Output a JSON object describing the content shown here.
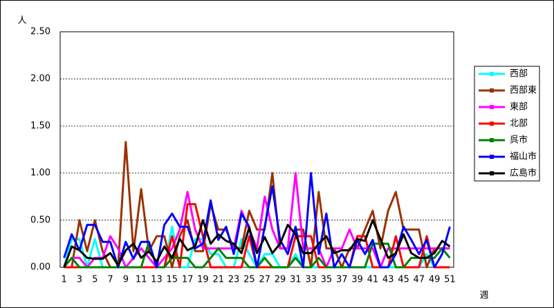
{
  "chart_data": {
    "type": "line",
    "y_label": "人",
    "x_label": "週",
    "categories": [
      1,
      null,
      3,
      null,
      5,
      null,
      7,
      null,
      9,
      null,
      11,
      null,
      13,
      null,
      15,
      null,
      17,
      null,
      19,
      null,
      21,
      null,
      23,
      null,
      25,
      null,
      27,
      null,
      29,
      null,
      31,
      null,
      33,
      null,
      35,
      null,
      37,
      null,
      39,
      null,
      41,
      null,
      43,
      null,
      45,
      null,
      47,
      null,
      49,
      null,
      51
    ],
    "ylim": [
      0,
      2.5
    ],
    "yticks": [
      {
        "value": 0,
        "label": "0.00"
      },
      {
        "value": 0.5,
        "label": "0.50"
      },
      {
        "value": 1,
        "label": "1.00"
      },
      {
        "value": 1.5,
        "label": "1.50"
      },
      {
        "value": 2,
        "label": "2.00"
      },
      {
        "value": 2.5,
        "label": "2.50"
      }
    ],
    "grid": true,
    "series": [
      {
        "name": "西部",
        "color": "#00ffff",
        "values": [
          0,
          0.3,
          0.3,
          0,
          0.3,
          0,
          0,
          0,
          0,
          0,
          0,
          0,
          0,
          0,
          0.43,
          0,
          0,
          0.3,
          0.3,
          0.14,
          0.14,
          0,
          0,
          0.3,
          0.14,
          0,
          0.14,
          0.14,
          0,
          0,
          0.14,
          0,
          0,
          0,
          0,
          0,
          0,
          0,
          0,
          0,
          0,
          0,
          0,
          0,
          0,
          0,
          0,
          0.14,
          0,
          0,
          0
        ]
      },
      {
        "name": "西部東",
        "color": "#993300",
        "values": [
          0,
          0,
          0.5,
          0.17,
          0.5,
          0.17,
          0,
          0,
          1.33,
          0.17,
          0.83,
          0.17,
          0.33,
          0.33,
          0,
          0.33,
          0.5,
          0.17,
          0.17,
          0.67,
          0.4,
          0.4,
          0.2,
          0.2,
          0.6,
          0.4,
          0.4,
          1.0,
          0.2,
          0.2,
          0.4,
          0.4,
          0,
          0.8,
          0.2,
          0.2,
          0,
          0.2,
          0.2,
          0.4,
          0.6,
          0.2,
          0.6,
          0.8,
          0.4,
          0.4,
          0.4,
          0,
          0.2,
          0.2,
          0.2
        ]
      },
      {
        "name": "東部",
        "color": "#ff00ff",
        "values": [
          0,
          0.1,
          0.1,
          0,
          0.1,
          0.1,
          0.33,
          0.2,
          0,
          0.1,
          0.2,
          0.1,
          0,
          0.1,
          0.2,
          0.4,
          0.8,
          0.4,
          0.2,
          0.2,
          0.2,
          0.2,
          0.2,
          0.6,
          0.4,
          0.2,
          0.75,
          0.4,
          0.2,
          0.2,
          1.0,
          0.2,
          0.2,
          0.2,
          0,
          0.2,
          0.2,
          0.4,
          0.2,
          0.2,
          0.2,
          0,
          0.2,
          0.2,
          0.2,
          0.2,
          0.2,
          0.2,
          0.2,
          0.2,
          0.2
        ]
      },
      {
        "name": "北部",
        "color": "#ff0000",
        "values": [
          0,
          0,
          0,
          0,
          0,
          0,
          0,
          0,
          0,
          0,
          0,
          0,
          0,
          0,
          0.33,
          0,
          0.67,
          0.67,
          0.33,
          0,
          0,
          0,
          0,
          0,
          0.33,
          0,
          0,
          0,
          0,
          0,
          0.33,
          0.33,
          0.33,
          0,
          0,
          0,
          0,
          0,
          0.33,
          0.33,
          0,
          0,
          0,
          0.33,
          0,
          0,
          0,
          0.33,
          0,
          0,
          0
        ]
      },
      {
        "name": "呉市",
        "color": "#008000",
        "values": [
          0,
          0.1,
          0,
          0,
          0,
          0,
          0,
          0,
          0,
          0,
          0,
          0.27,
          0,
          0,
          0.1,
          0.1,
          0.1,
          0,
          0,
          0.1,
          0.2,
          0.1,
          0.1,
          0.1,
          0,
          0,
          0.1,
          0,
          0,
          0,
          0.1,
          0,
          0,
          0.1,
          0,
          0,
          0,
          0,
          0,
          0,
          0.25,
          0.25,
          0.25,
          0,
          0,
          0.1,
          0.1,
          0.1,
          0.1,
          0.2,
          0.1
        ]
      },
      {
        "name": "福山市",
        "color": "#0000ff",
        "values": [
          0.1,
          0.35,
          0.18,
          0.45,
          0.45,
          0.27,
          0.27,
          0,
          0.27,
          0.09,
          0.27,
          0.27,
          0,
          0.45,
          0.57,
          0.43,
          0.43,
          0.2,
          0.25,
          0.71,
          0.29,
          0.43,
          0.14,
          0.57,
          0.43,
          0,
          0.43,
          0.86,
          0.29,
          0.14,
          0.43,
          0,
          1.0,
          0.14,
          0.57,
          0,
          0.14,
          0,
          0.29,
          0.14,
          0.29,
          0,
          0,
          0.14,
          0.43,
          0.29,
          0.14,
          0.29,
          0,
          0.14,
          0.43
        ]
      },
      {
        "name": "広島市",
        "color": "#000000",
        "values": [
          0,
          0.22,
          0.18,
          0.1,
          0.09,
          0.09,
          0.15,
          0.02,
          0.18,
          0.25,
          0.1,
          0.17,
          0.06,
          0.22,
          0.1,
          0.3,
          0.18,
          0.22,
          0.5,
          0.25,
          0.35,
          0.28,
          0.25,
          0.15,
          0.42,
          0.15,
          0.32,
          0.15,
          0.25,
          0.45,
          0.35,
          0.15,
          0.15,
          0.25,
          0.33,
          0.15,
          0.18,
          0.18,
          0.3,
          0.28,
          0.5,
          0.3,
          0.1,
          0.15,
          0.35,
          0.15,
          0.1,
          0.1,
          0.15,
          0.28,
          0.22
        ]
      }
    ]
  }
}
